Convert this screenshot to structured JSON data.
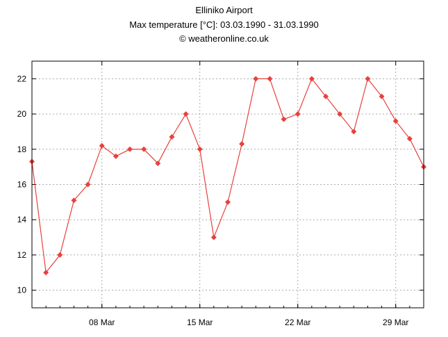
{
  "chart_data": {
    "type": "line",
    "title": "Elliniko Airport",
    "subtitle": "Max temperature [°C]: 03.03.1990 - 31.03.1990",
    "credit": "© weatheronline.co.uk",
    "xlabel": "",
    "ylabel": "",
    "x_day_range": [
      3,
      31
    ],
    "ylim": [
      9,
      23
    ],
    "y_ticks": [
      10,
      12,
      14,
      16,
      18,
      20,
      22
    ],
    "x_ticks": [
      {
        "day": 8,
        "label": "08 Mar"
      },
      {
        "day": 15,
        "label": "15 Mar"
      },
      {
        "day": 22,
        "label": "22 Mar"
      },
      {
        "day": 29,
        "label": "29 Mar"
      }
    ],
    "grid": true,
    "series": [
      {
        "name": "Max temperature",
        "color": "#e8413c",
        "days": [
          3,
          4,
          5,
          6,
          7,
          8,
          9,
          10,
          11,
          12,
          13,
          14,
          15,
          16,
          17,
          18,
          19,
          20,
          21,
          22,
          23,
          24,
          25,
          26,
          27,
          28,
          29,
          30,
          31
        ],
        "values": [
          17.3,
          11,
          12,
          15.1,
          16,
          18.2,
          17.6,
          18,
          18,
          17.2,
          18.7,
          20,
          18,
          13,
          15,
          18.3,
          22,
          22,
          19.7,
          20,
          22,
          21,
          20,
          19,
          22,
          21,
          19.6,
          18.6,
          17
        ]
      }
    ]
  }
}
